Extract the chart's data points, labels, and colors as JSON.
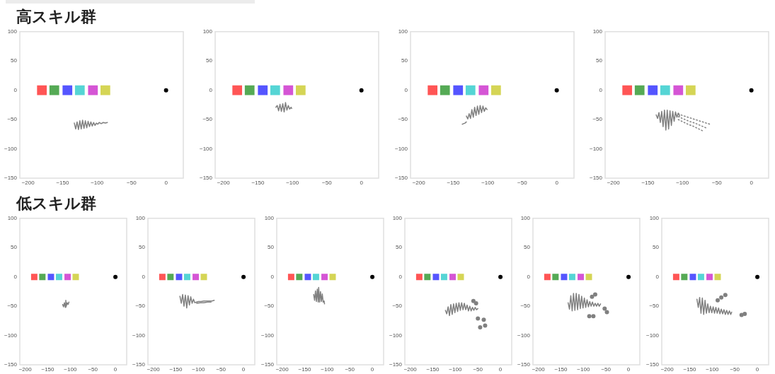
{
  "chart_data": [
    {
      "type": "scatter",
      "title": "高スキル群",
      "xlim": [
        -212,
        25
      ],
      "ylim": [
        -150,
        100
      ],
      "xticks": [
        {
          "value": -200,
          "label": "−200"
        },
        {
          "value": -150,
          "label": "−150"
        },
        {
          "value": -100,
          "label": "−100"
        },
        {
          "value": -50,
          "label": "−50"
        },
        {
          "value": 0,
          "label": "0"
        }
      ],
      "yticks": [
        {
          "value": -150,
          "label": "−150"
        },
        {
          "value": -100,
          "label": "−100"
        },
        {
          "value": -50,
          "label": "−50"
        },
        0,
        50,
        100
      ],
      "marker": "circle",
      "series": [
        {
          "marker": "square",
          "colors": [
            "#ff5555",
            "#55aa55",
            "#5555ff",
            "#55d5d5",
            "#d555d5",
            "#d5d555"
          ],
          "x": [
            -180,
            -162,
            -143,
            -125,
            -106,
            -88
          ],
          "values": [
            0,
            0,
            0,
            0,
            0,
            0
          ]
        },
        {
          "color": "#000000",
          "x": [
            0
          ],
          "values": [
            0
          ]
        },
        {
          "type": "line",
          "marker": "none",
          "color": "#808080",
          "x": [
            -133,
            -131,
            -129,
            -127,
            -125,
            -123,
            -121,
            -119,
            -117,
            -115,
            -113,
            -111,
            -109,
            -107,
            -105,
            -103,
            -101,
            -99,
            -97,
            -94,
            -91,
            -88,
            -85
          ],
          "values": [
            -56,
            -66,
            -54,
            -67,
            -52,
            -66,
            -51,
            -65,
            -52,
            -64,
            -53,
            -62,
            -54,
            -61,
            -55,
            -60,
            -56,
            -58,
            -55,
            -57,
            -55,
            -56,
            -55
          ]
        }
      ]
    },
    {
      "type": "scatter",
      "xlim": [
        -212,
        25
      ],
      "ylim": [
        -150,
        100
      ],
      "xticks": [
        {
          "value": -200,
          "label": "−200"
        },
        {
          "value": -150,
          "label": "−150"
        },
        {
          "value": -100,
          "label": "−100"
        },
        {
          "value": -50,
          "label": "−50"
        },
        {
          "value": 0,
          "label": "0"
        }
      ],
      "yticks": [
        {
          "value": -150,
          "label": "−150"
        },
        {
          "value": -100,
          "label": "−100"
        },
        {
          "value": -50,
          "label": "−50"
        },
        0,
        50,
        100
      ],
      "marker": "circle",
      "series": [
        {
          "marker": "square",
          "colors": [
            "#ff5555",
            "#55aa55",
            "#5555ff",
            "#55d5d5",
            "#d555d5",
            "#d5d555"
          ],
          "x": [
            -180,
            -162,
            -143,
            -125,
            -106,
            -88
          ],
          "values": [
            0,
            0,
            0,
            0,
            0,
            0
          ]
        },
        {
          "color": "#000000",
          "x": [
            0
          ],
          "values": [
            0
          ]
        },
        {
          "type": "line",
          "marker": "none",
          "color": "#808080",
          "x": [
            -124,
            -122,
            -120,
            -118,
            -116,
            -114,
            -112,
            -110,
            -108,
            -106,
            -104,
            -102,
            -101
          ],
          "values": [
            -29,
            -26,
            -35,
            -24,
            -36,
            -23,
            -37,
            -21,
            -34,
            -26,
            -32,
            -29,
            -31
          ]
        }
      ]
    },
    {
      "type": "scatter",
      "xlim": [
        -212,
        25
      ],
      "ylim": [
        -150,
        100
      ],
      "xticks": [
        {
          "value": -200,
          "label": "−200"
        },
        {
          "value": -150,
          "label": "−150"
        },
        {
          "value": -100,
          "label": "−100"
        },
        {
          "value": -50,
          "label": "−50"
        },
        {
          "value": 0,
          "label": "0"
        }
      ],
      "yticks": [
        {
          "value": -150,
          "label": "−150"
        },
        {
          "value": -100,
          "label": "−100"
        },
        {
          "value": -50,
          "label": "−50"
        },
        0,
        50,
        100
      ],
      "marker": "circle",
      "series": [
        {
          "marker": "square",
          "colors": [
            "#ff5555",
            "#55aa55",
            "#5555ff",
            "#55d5d5",
            "#d555d5",
            "#d5d555"
          ],
          "x": [
            -180,
            -162,
            -143,
            -125,
            -106,
            -88
          ],
          "values": [
            0,
            0,
            0,
            0,
            0,
            0
          ]
        },
        {
          "color": "#000000",
          "x": [
            0
          ],
          "values": [
            0
          ]
        },
        {
          "type": "line",
          "marker": "none",
          "color": "#808080",
          "x": [
            -131,
            -129,
            -127,
            -125,
            -123,
            -121,
            -119,
            -117,
            -115,
            -113,
            -111,
            -109,
            -107,
            -105,
            -103,
            -101
          ],
          "values": [
            -44,
            -49,
            -40,
            -48,
            -33,
            -46,
            -29,
            -43,
            -27,
            -41,
            -26,
            -38,
            -27,
            -36,
            -30,
            -33
          ]
        },
        {
          "type": "line",
          "marker": "none",
          "color": "#808080",
          "x": [
            -137,
            -135,
            -133,
            -131
          ],
          "values": [
            -58,
            -57,
            -56,
            -54
          ]
        }
      ]
    },
    {
      "type": "scatter",
      "xlim": [
        -212,
        25
      ],
      "ylim": [
        -150,
        100
      ],
      "xticks": [
        {
          "value": -200,
          "label": "−200"
        },
        {
          "value": -150,
          "label": "−150"
        },
        {
          "value": -100,
          "label": "−100"
        },
        {
          "value": -50,
          "label": "−50"
        },
        {
          "value": 0,
          "label": "0"
        }
      ],
      "yticks": [
        {
          "value": -150,
          "label": "−150"
        },
        {
          "value": -100,
          "label": "−100"
        },
        {
          "value": -50,
          "label": "−50"
        },
        0,
        50,
        100
      ],
      "marker": "circle",
      "series": [
        {
          "marker": "square",
          "colors": [
            "#ff5555",
            "#55aa55",
            "#5555ff",
            "#55d5d5",
            "#d555d5",
            "#d5d555"
          ],
          "x": [
            -180,
            -162,
            -143,
            -125,
            -106,
            -88
          ],
          "values": [
            0,
            0,
            0,
            0,
            0,
            0
          ]
        },
        {
          "color": "#000000",
          "x": [
            0
          ],
          "values": [
            0
          ]
        },
        {
          "type": "line",
          "marker": "none",
          "color": "#808080",
          "x": [
            -138,
            -136,
            -134,
            -132,
            -130,
            -128,
            -126,
            -124,
            -122,
            -120,
            -118,
            -116,
            -114,
            -112,
            -110,
            -108,
            -106,
            -104
          ],
          "values": [
            -42,
            -48,
            -38,
            -55,
            -36,
            -62,
            -34,
            -68,
            -34,
            -66,
            -35,
            -60,
            -36,
            -53,
            -37,
            -46,
            -39,
            -44
          ]
        },
        {
          "type": "line",
          "marker": "none",
          "line_style": "dotted",
          "color": "#808080",
          "x": [
            -106,
            -100,
            -92,
            -84,
            -76,
            -68,
            -60
          ],
          "values": [
            -40,
            -43,
            -46,
            -49,
            -52,
            -55,
            -58
          ]
        },
        {
          "type": "line",
          "marker": "none",
          "line_style": "dotted",
          "color": "#808080",
          "x": [
            -106,
            -98,
            -90,
            -82,
            -74,
            -66
          ],
          "values": [
            -45,
            -49,
            -53,
            -56,
            -60,
            -64
          ]
        },
        {
          "type": "line",
          "marker": "none",
          "line_style": "dotted",
          "color": "#808080",
          "x": [
            -106,
            -99,
            -92,
            -85,
            -78,
            -71
          ],
          "values": [
            -50,
            -54,
            -58,
            -61,
            -65,
            -69
          ]
        }
      ]
    },
    {
      "type": "scatter",
      "title": "低スキル群",
      "xlim": [
        -212,
        25
      ],
      "ylim": [
        -150,
        100
      ],
      "xticks": [
        {
          "value": -200,
          "label": "−200"
        },
        {
          "value": -150,
          "label": "−150"
        },
        {
          "value": -100,
          "label": "−100"
        },
        {
          "value": -50,
          "label": "−50"
        },
        {
          "value": 0,
          "label": "0"
        }
      ],
      "yticks": [
        {
          "value": -150,
          "label": "−150"
        },
        {
          "value": -100,
          "label": "−100"
        },
        {
          "value": -50,
          "label": "−50"
        },
        0,
        50,
        100
      ],
      "marker": "circle",
      "series": [
        {
          "marker": "square",
          "colors": [
            "#ff5555",
            "#55aa55",
            "#5555ff",
            "#55d5d5",
            "#d555d5",
            "#d5d555"
          ],
          "x": [
            -180,
            -162,
            -143,
            -125,
            -106,
            -88
          ],
          "values": [
            0,
            0,
            0,
            0,
            0,
            0
          ]
        },
        {
          "color": "#000000",
          "x": [
            0
          ],
          "values": [
            0
          ]
        },
        {
          "type": "line",
          "marker": "none",
          "color": "#808080",
          "x": [
            -117,
            -115,
            -113,
            -111,
            -110,
            -109,
            -107,
            -105,
            -103
          ],
          "values": [
            -47,
            -51,
            -44,
            -52,
            -40,
            -50,
            -44,
            -47,
            -43
          ]
        }
      ]
    },
    {
      "type": "scatter",
      "xlim": [
        -212,
        25
      ],
      "ylim": [
        -150,
        100
      ],
      "xticks": [
        {
          "value": -200,
          "label": "−200"
        },
        {
          "value": -150,
          "label": "−150"
        },
        {
          "value": -100,
          "label": "−100"
        },
        {
          "value": -50,
          "label": "−50"
        },
        {
          "value": 0,
          "label": "0"
        }
      ],
      "yticks": [
        {
          "value": -150,
          "label": "−150"
        },
        {
          "value": -100,
          "label": "−100"
        },
        {
          "value": -50,
          "label": "−50"
        },
        0,
        50,
        100
      ],
      "marker": "circle",
      "series": [
        {
          "marker": "square",
          "colors": [
            "#ff5555",
            "#55aa55",
            "#5555ff",
            "#55d5d5",
            "#d555d5",
            "#d5d555"
          ],
          "x": [
            -180,
            -162,
            -143,
            -125,
            -106,
            -88
          ],
          "values": [
            0,
            0,
            0,
            0,
            0,
            0
          ]
        },
        {
          "color": "#000000",
          "x": [
            0
          ],
          "values": [
            0
          ]
        },
        {
          "type": "line",
          "marker": "none",
          "color": "#808080",
          "x": [
            -141,
            -138,
            -135,
            -132,
            -129,
            -126,
            -123,
            -120,
            -117,
            -114,
            -111,
            -108,
            -104,
            -100,
            -94,
            -88,
            -82,
            -76,
            -70,
            -65
          ],
          "values": [
            -33,
            -45,
            -30,
            -50,
            -31,
            -53,
            -32,
            -48,
            -34,
            -45,
            -38,
            -44,
            -43,
            -42,
            -42,
            -41,
            -41,
            -41,
            -41,
            -40
          ]
        },
        {
          "type": "line",
          "marker": "none",
          "color": "#808080",
          "x": [
            -104,
            -96,
            -88,
            -80,
            -72
          ],
          "values": [
            -45,
            -44,
            -44,
            -43,
            -43
          ]
        }
      ]
    },
    {
      "type": "scatter",
      "xlim": [
        -212,
        25
      ],
      "ylim": [
        -150,
        100
      ],
      "xticks": [
        {
          "value": -200,
          "label": "−200"
        },
        {
          "value": -150,
          "label": "−150"
        },
        {
          "value": -100,
          "label": "−100"
        },
        {
          "value": -50,
          "label": "−50"
        },
        {
          "value": 0,
          "label": "0"
        }
      ],
      "yticks": [
        {
          "value": -150,
          "label": "−150"
        },
        {
          "value": -100,
          "label": "−100"
        },
        {
          "value": -50,
          "label": "−50"
        },
        0,
        50,
        100
      ],
      "marker": "circle",
      "series": [
        {
          "marker": "square",
          "colors": [
            "#ff5555",
            "#55aa55",
            "#5555ff",
            "#55d5d5",
            "#d555d5",
            "#d5d555"
          ],
          "x": [
            -180,
            -162,
            -143,
            -125,
            -106,
            -88
          ],
          "values": [
            0,
            0,
            0,
            0,
            0,
            0
          ]
        },
        {
          "color": "#000000",
          "x": [
            0
          ],
          "values": [
            0
          ]
        },
        {
          "type": "line",
          "marker": "none",
          "color": "#808080",
          "x": [
            -130,
            -128,
            -126,
            -124,
            -122,
            -120,
            -119,
            -117,
            -115,
            -113,
            -111,
            -109,
            -107,
            -106
          ],
          "values": [
            -30,
            -40,
            -24,
            -42,
            -21,
            -43,
            -18,
            -43,
            -25,
            -42,
            -29,
            -43,
            -41,
            -46
          ]
        }
      ]
    },
    {
      "type": "scatter",
      "xlim": [
        -212,
        25
      ],
      "ylim": [
        -150,
        100
      ],
      "xticks": [
        {
          "value": -200,
          "label": "−200"
        },
        {
          "value": -150,
          "label": "−150"
        },
        {
          "value": -100,
          "label": "−100"
        },
        {
          "value": -50,
          "label": "−50"
        },
        {
          "value": 0,
          "label": "0"
        }
      ],
      "yticks": [
        {
          "value": -150,
          "label": "−150"
        },
        {
          "value": -100,
          "label": "−100"
        },
        {
          "value": -50,
          "label": "−50"
        },
        0,
        50,
        100
      ],
      "marker": "circle",
      "series": [
        {
          "marker": "square",
          "colors": [
            "#ff5555",
            "#55aa55",
            "#5555ff",
            "#55d5d5",
            "#d555d5",
            "#d5d555"
          ],
          "x": [
            -180,
            -162,
            -143,
            -125,
            -106,
            -88
          ],
          "values": [
            0,
            0,
            0,
            0,
            0,
            0
          ]
        },
        {
          "color": "#000000",
          "x": [
            0
          ],
          "values": [
            0
          ]
        },
        {
          "type": "line",
          "marker": "none",
          "color": "#808080",
          "x": [
            -122,
            -119,
            -116,
            -113,
            -110,
            -107,
            -104,
            -101,
            -98,
            -95,
            -92,
            -89,
            -86,
            -83,
            -80,
            -77,
            -74,
            -71,
            -68,
            -65,
            -62,
            -59,
            -56,
            -53,
            -50
          ],
          "values": [
            -57,
            -63,
            -51,
            -66,
            -47,
            -64,
            -46,
            -61,
            -45,
            -59,
            -44,
            -57,
            -44,
            -56,
            -45,
            -56,
            -48,
            -58,
            -50,
            -58,
            -52,
            -57,
            -52,
            -56,
            -54
          ]
        },
        {
          "color": "#808080",
          "x": [
            -60,
            -54,
            -50,
            -37,
            -45,
            -34
          ],
          "values": [
            -41,
            -45,
            -71,
            -73,
            -86,
            -83
          ]
        }
      ]
    },
    {
      "type": "scatter",
      "xlim": [
        -212,
        25
      ],
      "ylim": [
        -150,
        100
      ],
      "xticks": [
        {
          "value": -200,
          "label": "−200"
        },
        {
          "value": -150,
          "label": "−150"
        },
        {
          "value": -100,
          "label": "−100"
        },
        {
          "value": -50,
          "label": "−50"
        },
        {
          "value": 0,
          "label": "0"
        }
      ],
      "yticks": [
        {
          "value": -150,
          "label": "−150"
        },
        {
          "value": -100,
          "label": "−100"
        },
        {
          "value": -50,
          "label": "−50"
        },
        0,
        50,
        100
      ],
      "marker": "circle",
      "series": [
        {
          "marker": "square",
          "colors": [
            "#ff5555",
            "#55aa55",
            "#5555ff",
            "#55d5d5",
            "#d555d5",
            "#d5d555"
          ],
          "x": [
            -180,
            -162,
            -143,
            -125,
            -106,
            -88
          ],
          "values": [
            0,
            0,
            0,
            0,
            0,
            0
          ]
        },
        {
          "color": "#000000",
          "x": [
            0
          ],
          "values": [
            0
          ]
        },
        {
          "type": "line",
          "marker": "none",
          "color": "#808080",
          "x": [
            -134,
            -131,
            -128,
            -125,
            -122,
            -119,
            -116,
            -113,
            -110,
            -107,
            -104,
            -101,
            -98,
            -95,
            -92,
            -89,
            -86,
            -83,
            -80,
            -77,
            -74,
            -71,
            -68,
            -65,
            -62
          ],
          "values": [
            -44,
            -55,
            -32,
            -58,
            -28,
            -57,
            -28,
            -56,
            -30,
            -54,
            -33,
            -53,
            -36,
            -52,
            -39,
            -51,
            -42,
            -50,
            -43,
            -50,
            -45,
            -50,
            -45,
            -50,
            -46
          ]
        },
        {
          "color": "#808080",
          "x": [
            -81,
            -74,
            -53,
            -48,
            -87,
            -78
          ],
          "values": [
            -34,
            -30,
            -54,
            -60,
            -67,
            -67
          ]
        }
      ]
    },
    {
      "type": "scatter",
      "xlim": [
        -212,
        25
      ],
      "ylim": [
        -150,
        100
      ],
      "xticks": [
        {
          "value": -200,
          "label": "−200"
        },
        {
          "value": -150,
          "label": "−150"
        },
        {
          "value": -100,
          "label": "−100"
        },
        {
          "value": -50,
          "label": "−50"
        },
        {
          "value": 0,
          "label": "0"
        }
      ],
      "yticks": [
        {
          "value": -150,
          "label": "−150"
        },
        {
          "value": -100,
          "label": "−100"
        },
        {
          "value": -50,
          "label": "−50"
        },
        0,
        50,
        100
      ],
      "marker": "circle",
      "series": [
        {
          "marker": "square",
          "colors": [
            "#ff5555",
            "#55aa55",
            "#5555ff",
            "#55d5d5",
            "#d555d5",
            "#d5d555"
          ],
          "x": [
            -180,
            -162,
            -143,
            -125,
            -106,
            -88
          ],
          "values": [
            0,
            0,
            0,
            0,
            0,
            0
          ]
        },
        {
          "color": "#000000",
          "x": [
            0
          ],
          "values": [
            0
          ]
        },
        {
          "type": "line",
          "marker": "none",
          "color": "#808080",
          "x": [
            -134,
            -131,
            -128,
            -125,
            -122,
            -119,
            -116,
            -113,
            -110,
            -107,
            -104,
            -101,
            -98,
            -95,
            -92,
            -89,
            -86,
            -83,
            -80,
            -77,
            -74,
            -71,
            -68,
            -65,
            -62,
            -59,
            -57
          ],
          "values": [
            -38,
            -52,
            -35,
            -62,
            -36,
            -64,
            -40,
            -62,
            -46,
            -61,
            -50,
            -61,
            -51,
            -62,
            -52,
            -62,
            -53,
            -63,
            -55,
            -63,
            -56,
            -64,
            -57,
            -64,
            -58,
            -64,
            -60
          ]
        },
        {
          "color": "#808080",
          "x": [
            -88,
            -80,
            -71,
            -35,
            -28
          ],
          "values": [
            -40,
            -35,
            -31,
            -65,
            -63
          ]
        }
      ]
    }
  ]
}
